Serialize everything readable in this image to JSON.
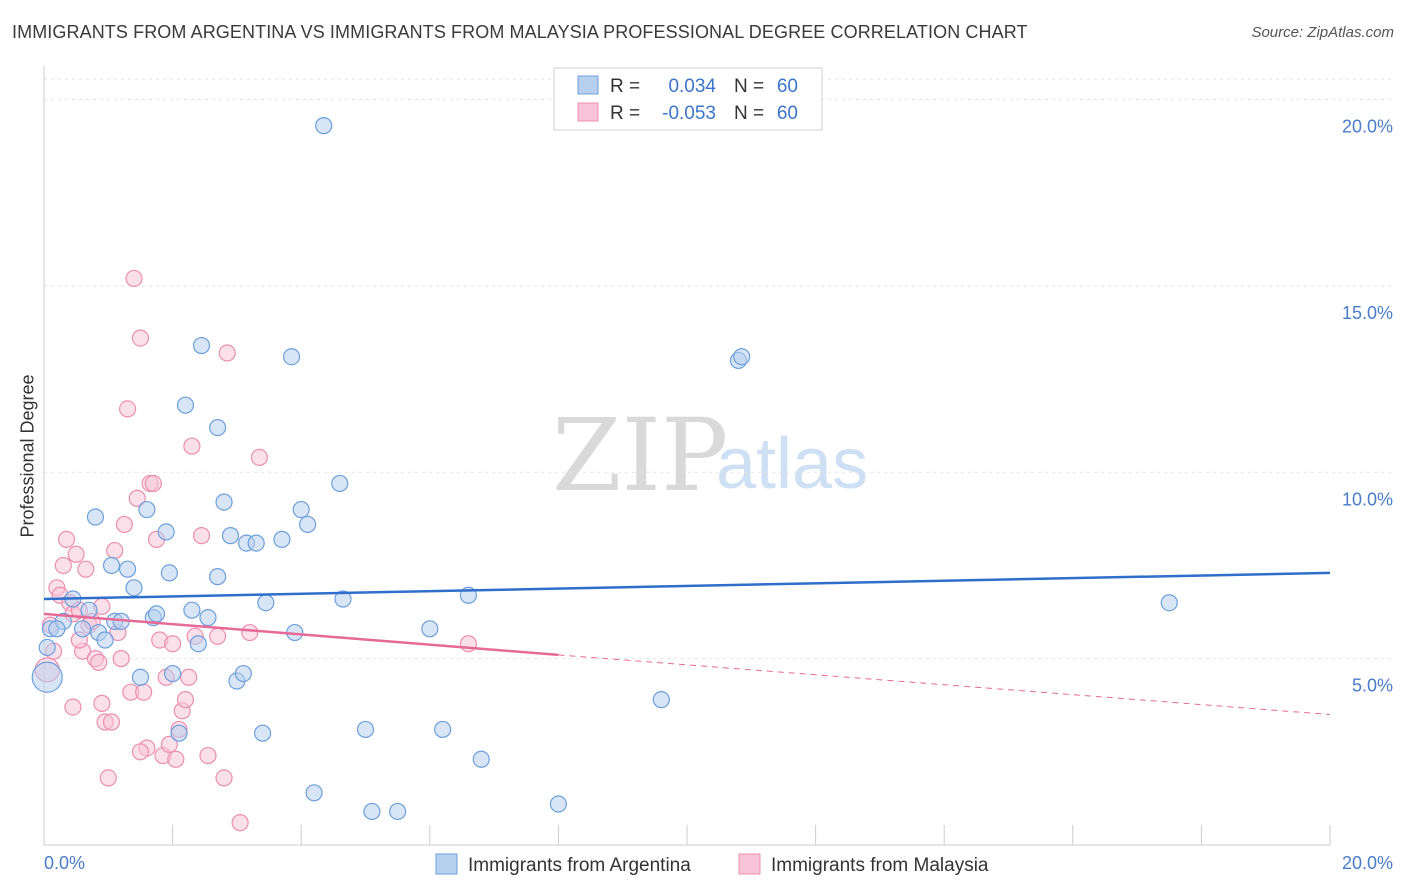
{
  "title": "IMMIGRANTS FROM ARGENTINA VS IMMIGRANTS FROM MALAYSIA PROFESSIONAL DEGREE CORRELATION CHART",
  "source": "Source: ZipAtlas.com",
  "watermark": {
    "zip": "ZIP",
    "atlas": "atlas"
  },
  "colors": {
    "argentina": "#6d9fdc",
    "argentina_fill": "#b8d0ef",
    "malaysia": "#eb8fb0",
    "malaysia_fill": "#f7c5d7",
    "blue_line": "#2e6fcb",
    "pink_line": "#e56a96",
    "axis_text": "#4a7cc9"
  },
  "stats": {
    "r_label": "R =",
    "n_label": "N =",
    "argentina": {
      "r": "0.034",
      "n": "60"
    },
    "malaysia": {
      "r": "-0.053",
      "n": "60"
    }
  },
  "chart_data": {
    "type": "scatter",
    "title": "IMMIGRANTS FROM ARGENTINA VS IMMIGRANTS FROM MALAYSIA PROFESSIONAL DEGREE CORRELATION CHART",
    "xlabel": "",
    "ylabel": "Professional Degree",
    "xlim": [
      0,
      20
    ],
    "ylim": [
      0,
      20.9
    ],
    "x_tick_labels": [
      "0.0%",
      "20.0%"
    ],
    "y_ticks": [
      5,
      10,
      15,
      20
    ],
    "y_tick_labels": [
      "5.0%",
      "10.0%",
      "15.0%",
      "20.0%"
    ],
    "grid": true,
    "legend_position": "bottom",
    "series": [
      {
        "name": "Immigrants from Argentina",
        "trend": {
          "x": [
            0,
            20
          ],
          "y": [
            6.6,
            7.3
          ],
          "style": "solid"
        },
        "points": [
          {
            "x": 0.05,
            "y": 4.5,
            "s": "xl"
          },
          {
            "x": 0.05,
            "y": 5.3
          },
          {
            "x": 0.1,
            "y": 5.8
          },
          {
            "x": 0.3,
            "y": 6.0
          },
          {
            "x": 0.45,
            "y": 6.6
          },
          {
            "x": 0.6,
            "y": 5.8
          },
          {
            "x": 0.7,
            "y": 6.3
          },
          {
            "x": 0.8,
            "y": 8.8
          },
          {
            "x": 0.85,
            "y": 5.7
          },
          {
            "x": 0.95,
            "y": 5.5
          },
          {
            "x": 1.05,
            "y": 7.5
          },
          {
            "x": 1.1,
            "y": 6.0
          },
          {
            "x": 1.2,
            "y": 6.0
          },
          {
            "x": 1.3,
            "y": 7.4
          },
          {
            "x": 1.4,
            "y": 6.9
          },
          {
            "x": 1.5,
            "y": 4.5
          },
          {
            "x": 1.6,
            "y": 9.0
          },
          {
            "x": 1.7,
            "y": 6.1
          },
          {
            "x": 1.75,
            "y": 6.2
          },
          {
            "x": 1.9,
            "y": 8.4
          },
          {
            "x": 1.95,
            "y": 7.3
          },
          {
            "x": 2.0,
            "y": 4.6
          },
          {
            "x": 2.1,
            "y": 3.0
          },
          {
            "x": 2.2,
            "y": 11.8
          },
          {
            "x": 2.3,
            "y": 6.3
          },
          {
            "x": 2.4,
            "y": 5.4
          },
          {
            "x": 2.45,
            "y": 13.4
          },
          {
            "x": 2.55,
            "y": 6.1
          },
          {
            "x": 2.7,
            "y": 11.2
          },
          {
            "x": 2.7,
            "y": 7.2
          },
          {
            "x": 2.8,
            "y": 9.2
          },
          {
            "x": 2.9,
            "y": 8.3
          },
          {
            "x": 3.0,
            "y": 4.4
          },
          {
            "x": 3.1,
            "y": 4.6
          },
          {
            "x": 3.15,
            "y": 8.1
          },
          {
            "x": 3.3,
            "y": 8.1
          },
          {
            "x": 3.4,
            "y": 3.0
          },
          {
            "x": 3.45,
            "y": 6.5
          },
          {
            "x": 3.7,
            "y": 8.2
          },
          {
            "x": 3.85,
            "y": 13.1
          },
          {
            "x": 3.9,
            "y": 5.7
          },
          {
            "x": 4.0,
            "y": 9.0
          },
          {
            "x": 4.1,
            "y": 8.6
          },
          {
            "x": 4.2,
            "y": 1.4
          },
          {
            "x": 4.35,
            "y": 19.3
          },
          {
            "x": 4.6,
            "y": 9.7
          },
          {
            "x": 4.65,
            "y": 6.6
          },
          {
            "x": 5.0,
            "y": 3.1
          },
          {
            "x": 5.1,
            "y": 0.9
          },
          {
            "x": 5.5,
            "y": 0.9
          },
          {
            "x": 6.0,
            "y": 5.8
          },
          {
            "x": 6.2,
            "y": 3.1
          },
          {
            "x": 6.6,
            "y": 6.7
          },
          {
            "x": 6.8,
            "y": 2.3
          },
          {
            "x": 8.0,
            "y": 1.1
          },
          {
            "x": 9.6,
            "y": 3.9
          },
          {
            "x": 10.8,
            "y": 13.0
          },
          {
            "x": 10.85,
            "y": 13.1
          },
          {
            "x": 17.5,
            "y": 6.5
          },
          {
            "x": 0.2,
            "y": 5.8
          }
        ]
      },
      {
        "name": "Immigrants from Malaysia",
        "trend": {
          "x": [
            0,
            8
          ],
          "y": [
            6.2,
            5.1
          ],
          "style": "solid",
          "dashed_to": [
            20,
            3.5
          ]
        },
        "points": [
          {
            "x": 0.05,
            "y": 4.7,
            "s": "lg"
          },
          {
            "x": 0.1,
            "y": 5.9
          },
          {
            "x": 0.15,
            "y": 5.2
          },
          {
            "x": 0.2,
            "y": 6.9
          },
          {
            "x": 0.25,
            "y": 6.7
          },
          {
            "x": 0.3,
            "y": 7.5
          },
          {
            "x": 0.35,
            "y": 8.2
          },
          {
            "x": 0.4,
            "y": 6.5
          },
          {
            "x": 0.45,
            "y": 6.2
          },
          {
            "x": 0.45,
            "y": 3.7
          },
          {
            "x": 0.5,
            "y": 7.8
          },
          {
            "x": 0.55,
            "y": 6.3
          },
          {
            "x": 0.6,
            "y": 5.2
          },
          {
            "x": 0.65,
            "y": 7.4
          },
          {
            "x": 0.7,
            "y": 5.9
          },
          {
            "x": 0.75,
            "y": 6.0
          },
          {
            "x": 0.8,
            "y": 5.0
          },
          {
            "x": 0.85,
            "y": 4.9
          },
          {
            "x": 0.9,
            "y": 3.8
          },
          {
            "x": 0.9,
            "y": 6.4
          },
          {
            "x": 0.95,
            "y": 3.3
          },
          {
            "x": 1.0,
            "y": 1.8
          },
          {
            "x": 1.05,
            "y": 3.3
          },
          {
            "x": 1.1,
            "y": 7.9
          },
          {
            "x": 1.15,
            "y": 5.7
          },
          {
            "x": 1.2,
            "y": 5.0
          },
          {
            "x": 1.25,
            "y": 8.6
          },
          {
            "x": 1.3,
            "y": 11.7
          },
          {
            "x": 1.35,
            "y": 4.1
          },
          {
            "x": 1.4,
            "y": 15.2
          },
          {
            "x": 1.45,
            "y": 9.3
          },
          {
            "x": 1.5,
            "y": 13.6
          },
          {
            "x": 1.55,
            "y": 4.1
          },
          {
            "x": 1.6,
            "y": 2.6
          },
          {
            "x": 1.65,
            "y": 9.7
          },
          {
            "x": 1.7,
            "y": 9.7
          },
          {
            "x": 1.75,
            "y": 8.2
          },
          {
            "x": 1.8,
            "y": 5.5
          },
          {
            "x": 1.85,
            "y": 2.4
          },
          {
            "x": 1.9,
            "y": 4.5
          },
          {
            "x": 1.95,
            "y": 2.7
          },
          {
            "x": 2.0,
            "y": 5.4
          },
          {
            "x": 2.05,
            "y": 2.3
          },
          {
            "x": 2.1,
            "y": 3.1
          },
          {
            "x": 2.15,
            "y": 3.6
          },
          {
            "x": 2.2,
            "y": 3.9
          },
          {
            "x": 2.25,
            "y": 4.5
          },
          {
            "x": 2.3,
            "y": 10.7
          },
          {
            "x": 2.35,
            "y": 5.6
          },
          {
            "x": 2.45,
            "y": 8.3
          },
          {
            "x": 2.55,
            "y": 2.4
          },
          {
            "x": 2.7,
            "y": 5.6
          },
          {
            "x": 2.8,
            "y": 1.8
          },
          {
            "x": 2.85,
            "y": 13.2
          },
          {
            "x": 3.05,
            "y": 0.6
          },
          {
            "x": 3.2,
            "y": 5.7
          },
          {
            "x": 3.35,
            "y": 10.4
          },
          {
            "x": 6.6,
            "y": 5.4
          },
          {
            "x": 1.5,
            "y": 2.5
          },
          {
            "x": 0.55,
            "y": 5.5
          }
        ]
      }
    ]
  }
}
